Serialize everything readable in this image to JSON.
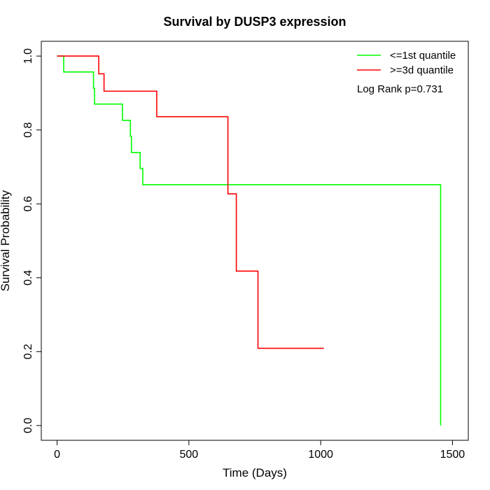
{
  "chart_data": {
    "type": "line",
    "title": "Survival by DUSP3 expression",
    "xlabel": "Time (Days)",
    "ylabel": "Survival Probability",
    "xlim": [
      -60,
      1560
    ],
    "ylim": [
      -0.04,
      1.04
    ],
    "xticks": [
      0,
      500,
      1000,
      1500
    ],
    "yticks": [
      0.0,
      0.2,
      0.4,
      0.6,
      0.8,
      1.0
    ],
    "xtick_labels": [
      "0",
      "500",
      "1000",
      "1500"
    ],
    "ytick_labels": [
      "0.0",
      "0.2",
      "0.4",
      "0.6",
      "0.8",
      "1.0"
    ],
    "grid": false,
    "legend_position": "top-right",
    "annotation": "Log Rank p=0.731",
    "series": [
      {
        "name": "<=1st quantile",
        "color": "#00ff00",
        "step": true,
        "x": [
          0,
          25,
          138,
          142,
          248,
          278,
          282,
          285,
          315,
          325,
          1455,
          1455
        ],
        "y": [
          1.0,
          0.957,
          0.913,
          0.87,
          0.826,
          0.783,
          0.739,
          0.739,
          0.696,
          0.652,
          0.652,
          0.0
        ]
      },
      {
        "name": ">=3d quantile",
        "color": "#ff0000",
        "step": true,
        "x": [
          0,
          158,
          178,
          378,
          648,
          680,
          762,
          1012
        ],
        "y": [
          1.0,
          0.952,
          0.905,
          0.836,
          0.627,
          0.418,
          0.209,
          0.209
        ]
      }
    ]
  }
}
